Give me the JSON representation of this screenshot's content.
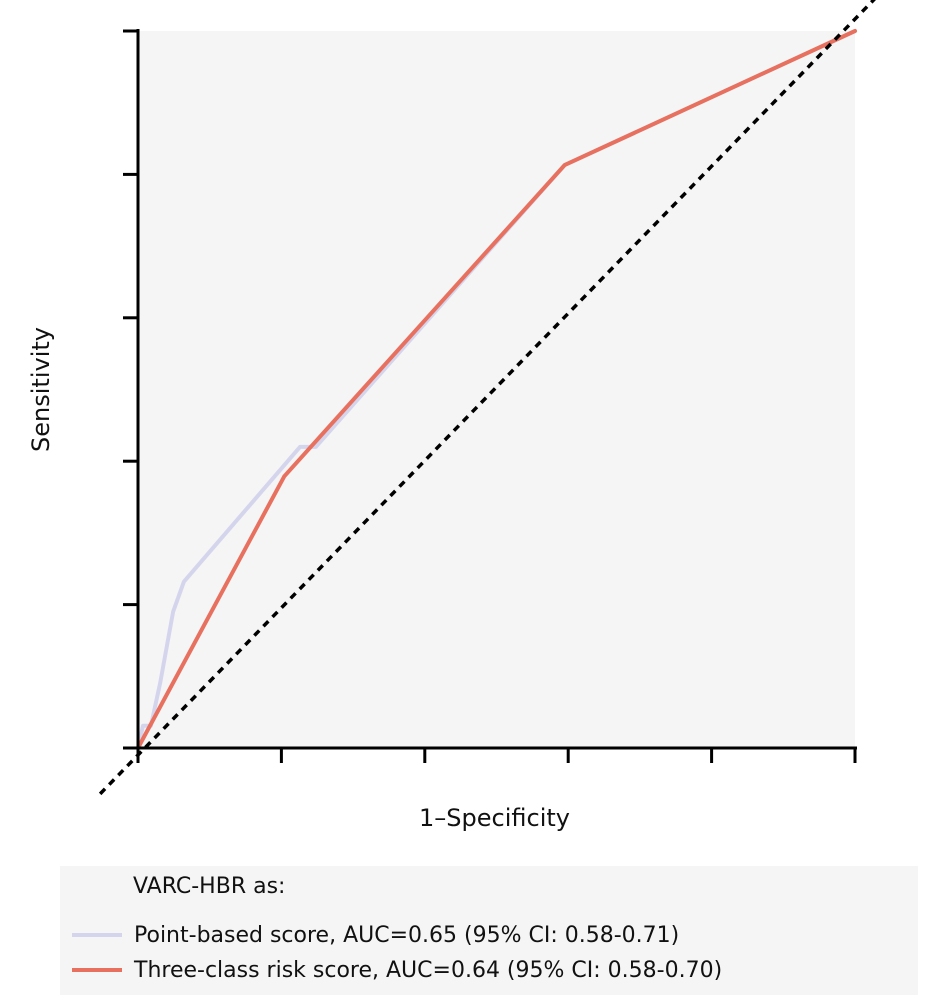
{
  "chart_data": {
    "type": "line",
    "title": "",
    "xlabel": "1–Specificity",
    "ylabel": "Sensitivity",
    "xlim": [
      0,
      1
    ],
    "ylim": [
      0,
      1
    ],
    "xticks": [
      0,
      0.2,
      0.4,
      0.6,
      0.8,
      1.0
    ],
    "yticks": [
      0,
      0.2,
      0.4,
      0.6,
      0.8,
      1.0
    ],
    "tick_labels_shown": false,
    "grid": false,
    "plot_background": "#f5f5f5",
    "reference_line": {
      "name": "chance",
      "style": "dotted",
      "color": "#000000",
      "x": [
        -0.05,
        1.05
      ],
      "y": [
        -0.05,
        1.05
      ]
    },
    "legend": {
      "title": "VARC-HBR as:",
      "placement": "bottom"
    },
    "series": [
      {
        "name": "Point-based score, AUC=0.65 (95% CI: 0.58-0.71)",
        "color": "#d4d5ed",
        "x": [
          0,
          0.007,
          0.018,
          0.031,
          0.049,
          0.064,
          0.226,
          0.248,
          0.595,
          1.0
        ],
        "y": [
          0,
          0.031,
          0.031,
          0.091,
          0.19,
          0.232,
          0.42,
          0.42,
          0.813,
          1.0
        ]
      },
      {
        "name": "Three-class risk score, AUC=0.64 (95% CI: 0.58-0.70)",
        "color": "#e8705f",
        "x": [
          0,
          0.204,
          0.595,
          1.0
        ],
        "y": [
          0,
          0.379,
          0.813,
          1.0
        ]
      }
    ]
  }
}
